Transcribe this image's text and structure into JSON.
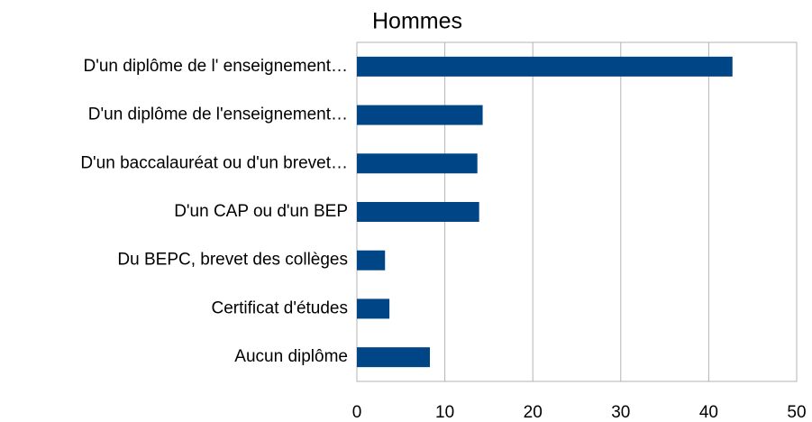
{
  "chart_data": {
    "type": "barh",
    "title": "Hommes",
    "categories": [
      "D'un diplôme de l' enseignement…",
      "D'un diplôme de l'enseignement…",
      "D'un baccalauréat ou d'un brevet…",
      "D'un CAP ou d'un BEP",
      "Du BEPC, brevet des collèges",
      "Certificat d'études",
      "Aucun diplôme"
    ],
    "values": [
      42.7,
      14.3,
      13.7,
      13.9,
      3.2,
      3.7,
      8.3
    ],
    "color": "#004586",
    "xlim": [
      0,
      50
    ],
    "xticks": [
      0,
      10,
      20,
      30,
      40,
      50
    ],
    "grid": true
  }
}
